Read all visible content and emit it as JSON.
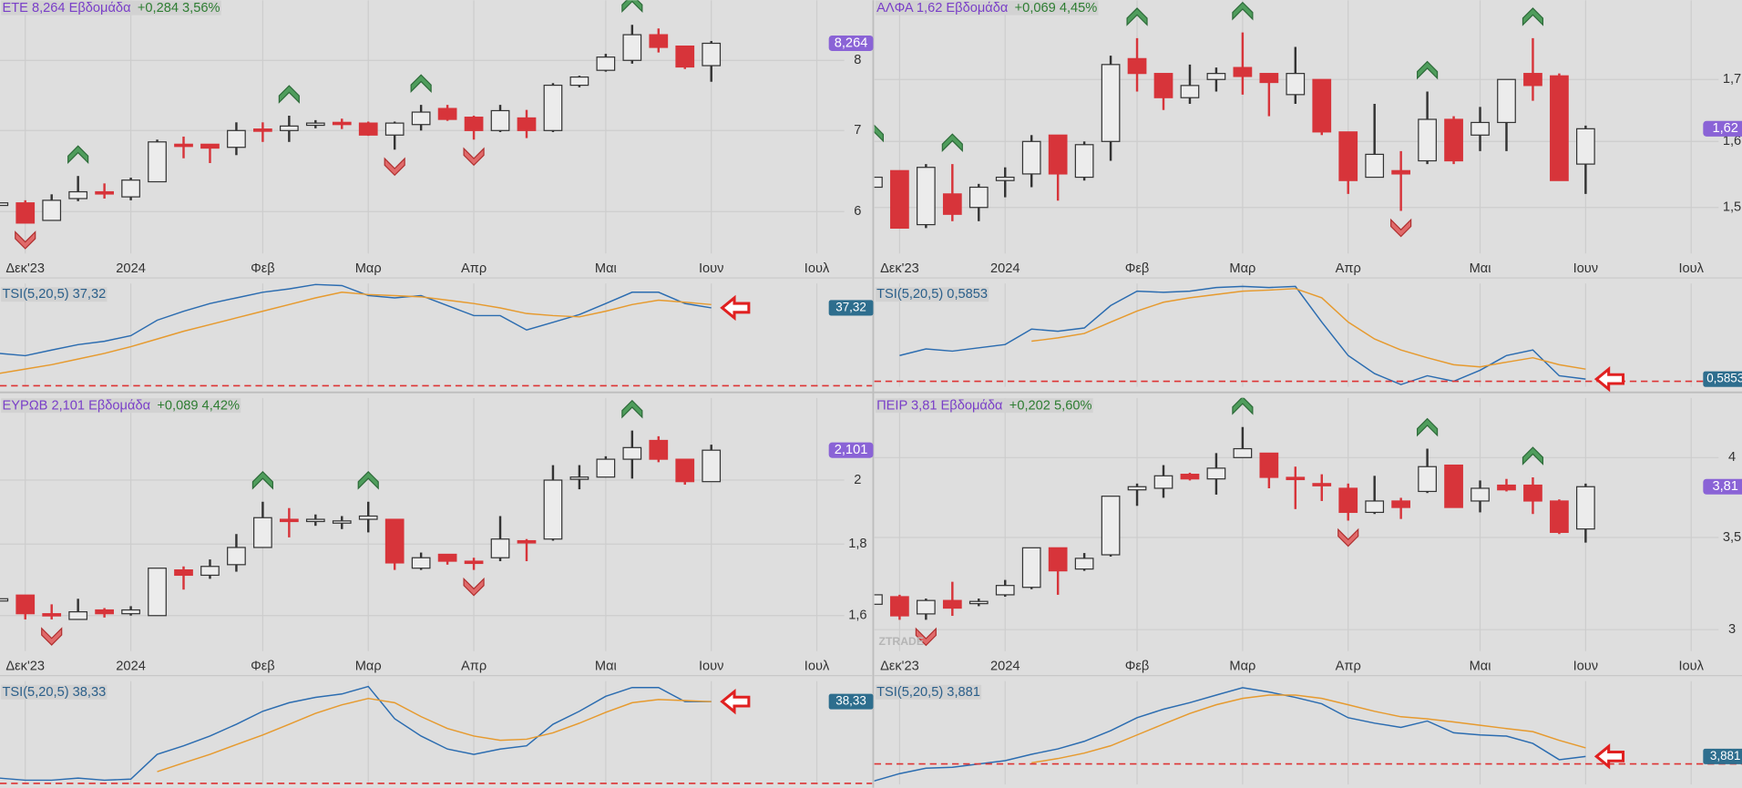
{
  "chart_data": [
    {
      "type": "candlestick",
      "title": "ETE 8,264 Εβδομάδα",
      "subtitle": "+0,284 3,56%",
      "log_scale": true,
      "grid": true,
      "up_color": "#ececec",
      "down_color": "#d7343a",
      "categories": [
        null,
        "Δεκ'23",
        null,
        null,
        null,
        "2024",
        null,
        null,
        null,
        null,
        "Φεβ",
        null,
        null,
        null,
        "Μαρ",
        null,
        null,
        null,
        "Απρ",
        null,
        null,
        null,
        null,
        "Μαι",
        null,
        null,
        null,
        "Ιουν",
        null,
        null,
        null,
        "Ιουλ"
      ],
      "open": [
        6.07,
        6.1,
        5.9,
        6.15,
        6.23,
        6.17,
        6.35,
        6.82,
        6.82,
        6.78,
        7.02,
        7.0,
        7.08,
        7.11,
        7.1,
        6.94,
        7.08,
        7.3,
        7.18,
        7.0,
        7.17,
        7.0,
        7.63,
        7.85,
        8.0,
        8.4,
        8.22,
        7.92,
        null,
        null,
        null,
        null
      ],
      "high": [
        6.2,
        6.13,
        6.2,
        6.42,
        6.33,
        6.4,
        6.88,
        6.92,
        6.82,
        7.11,
        7.11,
        7.2,
        7.14,
        7.16,
        7.12,
        7.12,
        7.35,
        7.35,
        7.2,
        7.35,
        7.28,
        7.66,
        7.77,
        8.1,
        8.56,
        8.5,
        8.22,
        8.3,
        null,
        null,
        null,
        null
      ],
      "low": [
        5.98,
        5.87,
        5.9,
        6.12,
        6.15,
        6.13,
        6.35,
        6.64,
        6.58,
        6.68,
        6.85,
        6.85,
        7.03,
        7.02,
        6.93,
        6.75,
        7.0,
        7.13,
        6.88,
        6.98,
        6.9,
        6.98,
        7.6,
        7.83,
        7.95,
        8.12,
        7.87,
        7.68,
        null,
        null,
        null,
        null
      ],
      "close": [
        6.1,
        5.87,
        6.13,
        6.23,
        6.21,
        6.37,
        6.85,
        6.8,
        6.77,
        7.0,
        7.0,
        7.06,
        7.1,
        7.09,
        6.94,
        7.1,
        7.25,
        7.15,
        7.0,
        7.27,
        7.0,
        7.63,
        7.75,
        8.05,
        8.4,
        8.2,
        7.9,
        8.264,
        null,
        null,
        null,
        null
      ],
      "ylim": [
        5.54,
        8.97
      ],
      "yticks": [
        6,
        7,
        8
      ],
      "last_label": "8,264",
      "buy_signals": [
        3,
        11,
        16,
        24
      ],
      "sell_signals": [
        1,
        15,
        18
      ],
      "indicator": {
        "type": "line",
        "title": "TSI(5,20,5) 37,32",
        "last_label": "37,32",
        "ylim": [
          -0.5,
          49
        ],
        "hline": 0,
        "series": [
          {
            "color": "#2b6cb0",
            "values": [
              15.5,
              14.4,
              17.1,
              19.7,
              21.3,
              24.0,
              31.4,
              35.7,
              39.4,
              42.1,
              44.8,
              46.4,
              48.5,
              48.0,
              43.2,
              42.1,
              43.2,
              38.4,
              33.6,
              33.6,
              26.7,
              30.4,
              34.1,
              39.4,
              44.8,
              44.8,
              39.4,
              37.32,
              null,
              null,
              null,
              null
            ]
          },
          {
            "color": "#e69a2e",
            "values": [
              5.9,
              8.0,
              10.1,
              12.8,
              15.5,
              18.7,
              22.4,
              26.1,
              29.3,
              32.5,
              35.7,
              38.9,
              42.1,
              44.8,
              43.7,
              43.2,
              42.6,
              41.0,
              39.4,
              37.3,
              34.6,
              33.6,
              33.0,
              35.7,
              38.9,
              41.0,
              40.0,
              38.9,
              null,
              null,
              null,
              null
            ]
          }
        ]
      }
    },
    {
      "type": "candlestick",
      "title": "ΑΛΦΑ 1,62 Εβδομάδα",
      "subtitle": "+0,069 4,45%",
      "log_scale": true,
      "grid": true,
      "up_color": "#ececec",
      "down_color": "#d7343a",
      "categories": [
        null,
        "Δεκ'23",
        null,
        null,
        null,
        "2024",
        null,
        null,
        null,
        null,
        "Φεβ",
        null,
        null,
        null,
        "Μαρ",
        null,
        null,
        null,
        "Απρ",
        null,
        null,
        null,
        null,
        "Μαι",
        null,
        null,
        null,
        "Ιουν",
        null,
        null,
        null,
        "Ιουλ"
      ],
      "open": [
        1.53,
        1.555,
        1.475,
        1.52,
        1.5,
        1.54,
        1.55,
        1.61,
        1.545,
        1.6,
        1.735,
        1.71,
        1.67,
        1.7,
        1.72,
        1.71,
        1.675,
        1.7,
        1.615,
        1.545,
        1.555,
        1.57,
        1.635,
        1.61,
        1.63,
        1.71,
        1.706,
        1.565,
        null,
        null,
        null,
        null
      ],
      "high": [
        1.58,
        1.555,
        1.565,
        1.565,
        1.535,
        1.56,
        1.61,
        1.61,
        1.6,
        1.74,
        1.77,
        1.71,
        1.725,
        1.72,
        1.78,
        1.71,
        1.755,
        1.7,
        1.615,
        1.66,
        1.585,
        1.68,
        1.64,
        1.655,
        1.7,
        1.77,
        1.71,
        1.625,
        null,
        null,
        null,
        null
      ],
      "low": [
        1.49,
        1.47,
        1.47,
        1.48,
        1.48,
        1.515,
        1.53,
        1.51,
        1.54,
        1.57,
        1.68,
        1.65,
        1.66,
        1.68,
        1.675,
        1.64,
        1.66,
        1.61,
        1.52,
        1.545,
        1.495,
        1.565,
        1.565,
        1.585,
        1.585,
        1.665,
        1.54,
        1.52,
        null,
        null,
        null,
        null
      ],
      "close": [
        1.545,
        1.47,
        1.56,
        1.49,
        1.53,
        1.545,
        1.6,
        1.55,
        1.595,
        1.725,
        1.71,
        1.67,
        1.69,
        1.71,
        1.705,
        1.695,
        1.71,
        1.615,
        1.54,
        1.58,
        1.55,
        1.635,
        1.57,
        1.63,
        1.7,
        1.69,
        1.54,
        1.62,
        null,
        null,
        null,
        null
      ],
      "ylim": [
        1.434,
        1.837
      ],
      "yticks": [
        {
          "value": 1.5,
          "label": "1,5"
        },
        {
          "value": 1.6,
          "label": "1,6"
        },
        {
          "value": 1.7,
          "label": "1,7"
        }
      ],
      "last_label": "1,62",
      "buy_signals": [
        0,
        3,
        10,
        14,
        21,
        25
      ],
      "sell_signals": [
        20
      ],
      "indicator": {
        "type": "line",
        "title": "TSI(5,20,5) 0,5853",
        "last_label": "0,5853",
        "ylim": [
          -1.5,
          26.6
        ],
        "hline": 0,
        "series": [
          {
            "color": "#2b6cb0",
            "values": [
              null,
              7.0,
              8.8,
              8.2,
              9.1,
              10.0,
              14.2,
              13.6,
              14.5,
              20.6,
              24.5,
              24.2,
              24.5,
              25.5,
              25.8,
              25.5,
              25.8,
              16.1,
              7.0,
              2.1,
              -0.9,
              1.5,
              0,
              3.0,
              7.0,
              8.5,
              1.5,
              0.5853,
              null,
              null,
              null,
              null
            ]
          },
          {
            "color": "#e69a2e",
            "values": [
              null,
              null,
              null,
              null,
              null,
              null,
              10.9,
              11.8,
              13.0,
              16.1,
              19.1,
              21.5,
              22.7,
              23.6,
              24.5,
              24.8,
              25.2,
              22.7,
              16.1,
              11.5,
              8.5,
              6.4,
              4.5,
              3.9,
              5.2,
              6.4,
              4.5,
              3.3,
              null,
              null,
              null,
              null
            ]
          }
        ]
      }
    },
    {
      "type": "candlestick",
      "title": "ΕΥΡΩΒ 2,101 Εβδομάδα",
      "subtitle": "+0,089 4,42%",
      "log_scale": true,
      "grid": true,
      "up_color": "#ececec",
      "down_color": "#d7343a",
      "categories": [
        null,
        "Δεκ'23",
        null,
        null,
        null,
        "2024",
        null,
        null,
        null,
        null,
        "Φεβ",
        null,
        null,
        null,
        "Μαρ",
        null,
        null,
        null,
        "Απρ",
        null,
        null,
        null,
        null,
        "Μαι",
        null,
        null,
        null,
        "Ιουν",
        null,
        null,
        null,
        "Ιουλ"
      ],
      "open": [
        1.64,
        1.655,
        1.605,
        1.59,
        1.615,
        1.605,
        1.6,
        1.725,
        1.71,
        1.74,
        1.79,
        1.875,
        1.87,
        1.87,
        1.875,
        1.875,
        1.73,
        1.77,
        1.75,
        1.76,
        1.81,
        1.815,
        2.005,
        2.01,
        2.07,
        2.135,
        2.07,
        1.995,
        null,
        null,
        null,
        null
      ],
      "high": [
        1.65,
        1.655,
        1.63,
        1.645,
        1.62,
        1.625,
        1.73,
        1.735,
        1.755,
        1.83,
        1.93,
        1.91,
        1.89,
        1.885,
        1.93,
        1.875,
        1.775,
        1.77,
        1.76,
        1.885,
        1.815,
        2.05,
        2.05,
        2.08,
        2.17,
        2.15,
        2.07,
        2.12,
        null,
        null,
        null,
        null
      ],
      "low": [
        1.63,
        1.59,
        1.59,
        1.59,
        1.595,
        1.6,
        1.6,
        1.67,
        1.7,
        1.72,
        1.79,
        1.82,
        1.855,
        1.845,
        1.835,
        1.725,
        1.725,
        1.74,
        1.725,
        1.75,
        1.75,
        1.81,
        1.97,
        2.01,
        2.005,
        2.06,
        1.985,
        1.995,
        null,
        null,
        null,
        null
      ],
      "close": [
        1.645,
        1.605,
        1.6,
        1.61,
        1.605,
        1.615,
        1.73,
        1.71,
        1.735,
        1.79,
        1.88,
        1.87,
        1.875,
        1.87,
        1.885,
        1.745,
        1.76,
        1.75,
        1.745,
        1.815,
        1.805,
        2.0,
        2.01,
        2.07,
        2.11,
        2.07,
        1.995,
        2.101,
        null,
        null,
        null,
        null
      ],
      "ylim": [
        1.509,
        2.29
      ],
      "yticks": [
        {
          "value": 1.6,
          "label": "1,6"
        },
        {
          "value": 1.8,
          "label": "1,8"
        },
        2
      ],
      "last_label": "2,101",
      "buy_signals": [
        10,
        14,
        24
      ],
      "sell_signals": [
        2,
        18
      ],
      "indicator": {
        "type": "line",
        "title": "TSI(5,20,5) 38,33",
        "last_label": "38,33",
        "ylim": [
          -0.5,
          47.9
        ],
        "hline": 0,
        "series": [
          {
            "color": "#2b6cb0",
            "values": [
              2.5,
              1.5,
              1.5,
              2.5,
              1.5,
              2.0,
              13.6,
              17.6,
              22.2,
              27.7,
              33.8,
              37.8,
              40.3,
              41.9,
              45.4,
              30.3,
              22.2,
              16.1,
              13.6,
              16.1,
              17.6,
              27.7,
              33.8,
              40.8,
              44.9,
              44.9,
              38.3,
              38.33,
              null,
              null,
              null,
              null
            ]
          },
          {
            "color": "#e69a2e",
            "values": [
              null,
              null,
              null,
              null,
              null,
              null,
              5.5,
              9.6,
              13.6,
              18.2,
              22.7,
              27.7,
              32.8,
              36.8,
              39.8,
              37.8,
              31.3,
              25.7,
              22.2,
              20.2,
              20.7,
              23.7,
              28.2,
              33.3,
              37.8,
              39.3,
              38.8,
              38.3,
              null,
              null,
              null,
              null
            ]
          }
        ]
      }
    },
    {
      "type": "candlestick",
      "title": "ΠΕΙΡ 3,81 Εβδομάδα",
      "subtitle": "+0,202 5,60%",
      "log_scale": true,
      "grid": true,
      "watermark": "ZTRADE",
      "up_color": "#ececec",
      "down_color": "#d7343a",
      "categories": [
        null,
        "Δεκ'23",
        null,
        null,
        null,
        "2024",
        null,
        null,
        null,
        null,
        "Φεβ",
        null,
        null,
        null,
        "Μαρ",
        null,
        null,
        null,
        "Απρ",
        null,
        null,
        null,
        null,
        "Μαι",
        null,
        null,
        null,
        "Ιουν",
        null,
        null,
        null,
        "Ιουλ"
      ],
      "open": [
        3.13,
        3.17,
        3.08,
        3.15,
        3.14,
        3.18,
        3.22,
        3.44,
        3.32,
        3.4,
        3.79,
        3.8,
        3.89,
        3.86,
        4.0,
        4.03,
        3.87,
        3.83,
        3.8,
        3.65,
        3.72,
        3.78,
        3.95,
        3.72,
        3.82,
        3.82,
        3.72,
        3.55,
        null,
        null,
        null,
        null
      ],
      "high": [
        3.2,
        3.18,
        3.16,
        3.25,
        3.16,
        3.26,
        3.44,
        3.44,
        3.41,
        3.75,
        3.83,
        3.95,
        3.9,
        4.03,
        4.21,
        4.03,
        3.94,
        3.89,
        3.83,
        3.88,
        3.74,
        4.06,
        3.95,
        3.85,
        3.86,
        3.87,
        3.73,
        3.83,
        null,
        null,
        null,
        null
      ],
      "low": [
        3.1,
        3.05,
        3.05,
        3.07,
        3.12,
        3.17,
        3.21,
        3.18,
        3.31,
        3.39,
        3.69,
        3.74,
        3.85,
        3.76,
        4.0,
        3.8,
        3.67,
        3.72,
        3.6,
        3.64,
        3.61,
        3.77,
        3.68,
        3.65,
        3.78,
        3.64,
        3.52,
        3.47,
        null,
        null,
        null,
        null
      ],
      "close": [
        3.18,
        3.07,
        3.15,
        3.11,
        3.145,
        3.23,
        3.44,
        3.31,
        3.38,
        3.75,
        3.81,
        3.88,
        3.86,
        3.93,
        4.06,
        3.87,
        3.86,
        3.82,
        3.65,
        3.72,
        3.68,
        3.94,
        3.68,
        3.8,
        3.79,
        3.72,
        3.53,
        3.81,
        null,
        null,
        null,
        null
      ],
      "ylim": [
        2.894,
        4.42
      ],
      "yticks": [
        3,
        {
          "value": 3.5,
          "label": "3,5"
        },
        4
      ],
      "last_label": "3,81",
      "buy_signals": [
        14,
        21,
        25
      ],
      "sell_signals": [
        2,
        18
      ],
      "indicator": {
        "type": "line",
        "title": "TSI(5,20,5) 3,881",
        "last_label": "3,881",
        "ylim": [
          -10.6,
          42.8
        ],
        "hline": 0,
        "series": [
          {
            "color": "#2b6cb0",
            "values": [
              -8.9,
              -5.0,
              -2.2,
              -1.7,
              0,
              1.7,
              5.0,
              7.8,
              11.7,
              17.2,
              23.9,
              28.3,
              31.7,
              35.6,
              39.4,
              37.2,
              34.4,
              31.1,
              23.9,
              21.1,
              18.9,
              22.2,
              16.1,
              15.0,
              14.4,
              10.6,
              2.2,
              3.881,
              null,
              null,
              null,
              null
            ]
          },
          {
            "color": "#e69a2e",
            "values": [
              null,
              null,
              null,
              null,
              null,
              null,
              0.6,
              2.8,
              5.6,
              9.4,
              15,
              20.6,
              26.1,
              30.6,
              33.9,
              35.6,
              35.6,
              33.9,
              30.6,
              27.2,
              24.4,
              23.3,
              21.7,
              20,
              18.3,
              16.7,
              12.2,
              8.3,
              null,
              null,
              null,
              null
            ]
          }
        ]
      }
    }
  ]
}
